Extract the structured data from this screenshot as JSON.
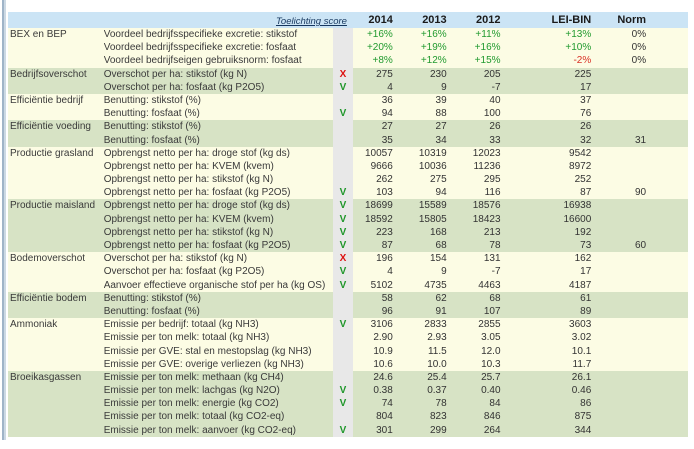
{
  "header": {
    "link_label": "Toelichting score",
    "columns": [
      "2014",
      "2013",
      "2012",
      "LEI-BIN",
      "Norm"
    ]
  },
  "palette": {
    "header_bg": "#cbe4f5",
    "section_cream": "#fcfce4",
    "section_green": "#d7e3c5",
    "score_column_bg": "#e8e8e8",
    "positive_value": "#219a2f",
    "negative_value": "#d93025",
    "mark_ok_green": "#1e9629",
    "mark_bad_red": "#dd1111",
    "link_color": "#17375e"
  },
  "marks": {
    "ok": "V",
    "bad": "X"
  },
  "sections": [
    {
      "label": "BEX en BEP",
      "rows": [
        {
          "desc": "Voordeel bedrijfsspecifieke excretie: stikstof",
          "mark": "",
          "values": [
            "+16%",
            "+16%",
            "+11%",
            "+13%",
            "0%"
          ]
        },
        {
          "desc": "Voordeel bedrijfsspecifieke excretie: fosfaat",
          "mark": "",
          "values": [
            "+20%",
            "+19%",
            "+16%",
            "+10%",
            "0%"
          ]
        },
        {
          "desc": "Voordeel bedrijfseigen gebruiksnorm: fosfaat",
          "mark": "",
          "values": [
            "+8%",
            "+12%",
            "+15%",
            "-2%",
            "0%"
          ]
        }
      ]
    },
    {
      "label": "Bedrijfsoverschot",
      "rows": [
        {
          "desc": "Overschot per ha: stikstof (kg N)",
          "mark": "X",
          "values": [
            "275",
            "230",
            "205",
            "225",
            ""
          ]
        },
        {
          "desc": "Overschot per ha: fosfaat (kg P2O5)",
          "mark": "V",
          "values": [
            "4",
            "9",
            "-7",
            "17",
            ""
          ]
        }
      ]
    },
    {
      "label": "Efficiëntie bedrijf",
      "rows": [
        {
          "desc": "Benutting: stikstof (%)",
          "mark": "",
          "values": [
            "36",
            "39",
            "40",
            "37",
            ""
          ]
        },
        {
          "desc": "Benutting: fosfaat (%)",
          "mark": "V",
          "values": [
            "94",
            "88",
            "100",
            "76",
            ""
          ]
        }
      ]
    },
    {
      "label": "Efficiëntie voeding",
      "rows": [
        {
          "desc": "Benutting: stikstof (%)",
          "mark": "",
          "values": [
            "27",
            "27",
            "26",
            "26",
            ""
          ]
        },
        {
          "desc": "Benutting: fosfaat (%)",
          "mark": "",
          "values": [
            "35",
            "34",
            "33",
            "32",
            "31"
          ]
        }
      ]
    },
    {
      "label": "Productie grasland",
      "rows": [
        {
          "desc": "Opbrengst netto per ha: droge stof (kg ds)",
          "mark": "",
          "values": [
            "10057",
            "10319",
            "12023",
            "9542",
            ""
          ]
        },
        {
          "desc": "Opbrengst netto per ha: KVEM (kvem)",
          "mark": "",
          "values": [
            "9666",
            "10036",
            "11236",
            "8972",
            ""
          ]
        },
        {
          "desc": "Opbrengst netto per ha: stikstof (kg N)",
          "mark": "",
          "values": [
            "262",
            "275",
            "295",
            "252",
            ""
          ]
        },
        {
          "desc": "Opbrengst netto per ha: fosfaat (kg P2O5)",
          "mark": "V",
          "values": [
            "103",
            "94",
            "116",
            "87",
            "90"
          ]
        }
      ]
    },
    {
      "label": "Productie maisland",
      "rows": [
        {
          "desc": "Opbrengst netto per ha: droge stof (kg ds)",
          "mark": "V",
          "values": [
            "18699",
            "15589",
            "18576",
            "16938",
            ""
          ]
        },
        {
          "desc": "Opbrengst netto per ha: KVEM (kvem)",
          "mark": "V",
          "values": [
            "18592",
            "15805",
            "18423",
            "16600",
            ""
          ]
        },
        {
          "desc": "Opbrengst netto per ha: stikstof (kg N)",
          "mark": "V",
          "values": [
            "223",
            "168",
            "213",
            "192",
            ""
          ]
        },
        {
          "desc": "Opbrengst netto per ha: fosfaat (kg P2O5)",
          "mark": "V",
          "values": [
            "87",
            "68",
            "78",
            "73",
            "60"
          ]
        }
      ]
    },
    {
      "label": "Bodemoverschot",
      "rows": [
        {
          "desc": "Overschot per ha: stikstof (kg N)",
          "mark": "X",
          "values": [
            "196",
            "154",
            "131",
            "162",
            ""
          ]
        },
        {
          "desc": "Overschot per ha: fosfaat (kg P2O5)",
          "mark": "V",
          "values": [
            "4",
            "9",
            "-7",
            "17",
            ""
          ]
        },
        {
          "desc": "Aanvoer effectieve organische stof per ha (kg OS)",
          "mark": "V",
          "values": [
            "5102",
            "4735",
            "4463",
            "4187",
            ""
          ]
        }
      ]
    },
    {
      "label": "Efficiëntie bodem",
      "rows": [
        {
          "desc": "Benutting: stikstof (%)",
          "mark": "",
          "values": [
            "58",
            "62",
            "68",
            "61",
            ""
          ]
        },
        {
          "desc": "Benutting: fosfaat (%)",
          "mark": "",
          "values": [
            "96",
            "91",
            "107",
            "89",
            ""
          ]
        }
      ]
    },
    {
      "label": "Ammoniak",
      "rows": [
        {
          "desc": "Emissie per bedrijf: totaal (kg NH3)",
          "mark": "V",
          "values": [
            "3106",
            "2833",
            "2855",
            "3603",
            ""
          ]
        },
        {
          "desc": "Emissie per ton melk: totaal (kg NH3)",
          "mark": "",
          "values": [
            "2.90",
            "2.93",
            "3.05",
            "3.02",
            ""
          ]
        },
        {
          "desc": "Emissie per GVE: stal en mestopslag (kg NH3)",
          "mark": "",
          "values": [
            "10.9",
            "11.5",
            "12.0",
            "10.1",
            ""
          ]
        },
        {
          "desc": "Emissie per GVE: overige verliezen (kg NH3)",
          "mark": "",
          "values": [
            "10.6",
            "10.0",
            "10.3",
            "11.7",
            ""
          ]
        }
      ]
    },
    {
      "label": "Broeikasgassen",
      "rows": [
        {
          "desc": "Emissie per ton melk: methaan (kg CH4)",
          "mark": "",
          "values": [
            "24.6",
            "25.4",
            "25.7",
            "26.1",
            ""
          ]
        },
        {
          "desc": "Emissie per ton melk: lachgas (kg N2O)",
          "mark": "V",
          "values": [
            "0.38",
            "0.37",
            "0.40",
            "0.46",
            ""
          ]
        },
        {
          "desc": "Emissie per ton melk: energie (kg CO2)",
          "mark": "V",
          "values": [
            "74",
            "78",
            "84",
            "86",
            ""
          ]
        },
        {
          "desc": "Emissie per ton melk: totaal (kg CO2-eq)",
          "mark": "",
          "values": [
            "804",
            "823",
            "846",
            "875",
            ""
          ]
        },
        {
          "desc": "Emissie per ton melk: aanvoer (kg CO2-eq)",
          "mark": "V",
          "values": [
            "301",
            "299",
            "264",
            "344",
            ""
          ]
        }
      ]
    }
  ]
}
